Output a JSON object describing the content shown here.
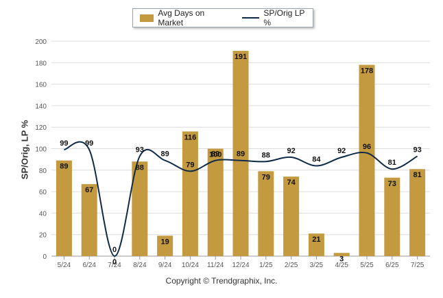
{
  "legend": {
    "bar_label": "Avg Days on Market",
    "line_label": "SP/Orig LP %"
  },
  "footer": "Copyright © Trendgraphix, Inc.",
  "colors": {
    "bar": "#C39A3F",
    "line": "#0E2A47",
    "grid": "#DDDDDD",
    "axis_text": "#555555"
  },
  "chart_data": {
    "type": "bar",
    "categories": [
      "5/24",
      "6/24",
      "7/24",
      "8/24",
      "9/24",
      "10/24",
      "11/24",
      "12/24",
      "1/25",
      "2/25",
      "3/25",
      "4/25",
      "5/25",
      "6/25",
      "7/25"
    ],
    "series": [
      {
        "name": "Avg Days on Market",
        "type": "bar",
        "values": [
          89,
          67,
          0,
          88,
          19,
          116,
          100,
          191,
          79,
          74,
          21,
          3,
          178,
          73,
          81
        ]
      },
      {
        "name": "SP/Orig LP %",
        "type": "line",
        "values": [
          99,
          99,
          0,
          93,
          89,
          79,
          89,
          89,
          88,
          92,
          84,
          92,
          96,
          81,
          93
        ]
      }
    ],
    "ylabel": "SP/Orig, LP %",
    "ylim": [
      0,
      200
    ],
    "yticks": [
      0,
      20,
      40,
      60,
      80,
      100,
      120,
      140,
      160,
      180,
      200
    ],
    "grid": true,
    "legend_position": "top-center"
  }
}
